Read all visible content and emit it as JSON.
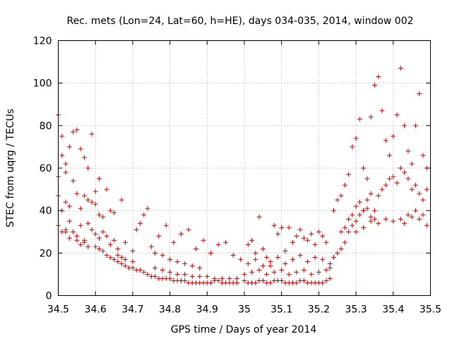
{
  "chart_data": {
    "type": "scatter",
    "title": "Rec. mets (Lon=24, Lat=60, h=HE), days 034-035, 2014, window 002",
    "xlabel": "GPS time / Days of year 2014",
    "ylabel": "STEC from uqrg / TECUs",
    "xlim": [
      34.5,
      35.5
    ],
    "ylim": [
      0,
      120
    ],
    "xticks": [
      "34.5",
      "34.6",
      "34.7",
      "34.8",
      "34.9",
      "35",
      "35.1",
      "35.2",
      "35.3",
      "35.4",
      "35.5"
    ],
    "yticks": [
      "0",
      "20",
      "40",
      "60",
      "80",
      "100",
      "120"
    ],
    "grid": true,
    "marker": "+",
    "color": "#cc0000",
    "series": [
      {
        "points": [
          [
            34.5,
            85
          ],
          [
            34.5,
            56
          ],
          [
            34.51,
            75
          ],
          [
            34.51,
            66
          ],
          [
            34.52,
            62
          ],
          [
            34.52,
            58
          ],
          [
            34.53,
            70
          ],
          [
            34.54,
            77
          ],
          [
            34.55,
            78
          ],
          [
            34.56,
            69
          ],
          [
            34.57,
            65
          ],
          [
            34.58,
            60
          ],
          [
            34.59,
            76
          ],
          [
            34.6,
            49
          ],
          [
            34.61,
            55
          ],
          [
            34.63,
            50
          ],
          [
            34.5,
            47
          ],
          [
            34.51,
            40
          ],
          [
            34.52,
            44
          ],
          [
            34.53,
            42
          ],
          [
            34.54,
            54
          ],
          [
            34.55,
            48
          ],
          [
            34.56,
            41
          ],
          [
            34.57,
            47
          ],
          [
            34.58,
            45
          ],
          [
            34.59,
            44
          ],
          [
            34.6,
            43
          ],
          [
            34.61,
            38
          ],
          [
            34.62,
            37
          ],
          [
            34.64,
            40
          ],
          [
            34.65,
            39
          ],
          [
            34.67,
            45
          ],
          [
            34.5,
            33
          ],
          [
            34.51,
            30
          ],
          [
            34.52,
            31
          ],
          [
            34.53,
            35
          ],
          [
            34.54,
            30
          ],
          [
            34.55,
            28
          ],
          [
            34.56,
            33
          ],
          [
            34.57,
            26
          ],
          [
            34.58,
            34
          ],
          [
            34.59,
            31
          ],
          [
            34.6,
            29
          ],
          [
            34.61,
            27
          ],
          [
            34.62,
            30
          ],
          [
            34.63,
            28
          ],
          [
            34.64,
            24
          ],
          [
            34.65,
            26
          ],
          [
            34.66,
            22
          ],
          [
            34.68,
            25
          ],
          [
            34.7,
            21
          ],
          [
            34.52,
            30
          ],
          [
            34.53,
            27
          ],
          [
            34.55,
            26
          ],
          [
            34.56,
            24
          ],
          [
            34.57,
            25
          ],
          [
            34.58,
            23
          ],
          [
            34.6,
            23
          ],
          [
            34.61,
            22
          ],
          [
            34.62,
            21
          ],
          [
            34.63,
            19
          ],
          [
            34.64,
            18
          ],
          [
            34.65,
            17
          ],
          [
            34.66,
            16
          ],
          [
            34.67,
            15
          ],
          [
            34.68,
            14
          ],
          [
            34.69,
            13
          ],
          [
            34.7,
            13
          ],
          [
            34.71,
            12
          ],
          [
            34.72,
            12
          ],
          [
            34.73,
            11
          ],
          [
            34.66,
            19
          ],
          [
            34.67,
            18
          ],
          [
            34.68,
            17
          ],
          [
            34.7,
            16
          ],
          [
            34.71,
            31
          ],
          [
            34.72,
            34
          ],
          [
            34.73,
            38
          ],
          [
            34.74,
            41
          ],
          [
            34.75,
            23
          ],
          [
            34.76,
            20
          ],
          [
            34.78,
            19
          ],
          [
            34.8,
            17
          ],
          [
            34.82,
            16
          ],
          [
            34.84,
            15
          ],
          [
            34.86,
            14
          ],
          [
            34.88,
            13
          ],
          [
            34.74,
            10
          ],
          [
            34.75,
            9
          ],
          [
            34.76,
            9
          ],
          [
            34.77,
            8
          ],
          [
            34.78,
            8
          ],
          [
            34.79,
            8
          ],
          [
            34.8,
            8
          ],
          [
            34.81,
            7
          ],
          [
            34.82,
            7
          ],
          [
            34.83,
            7
          ],
          [
            34.84,
            7
          ],
          [
            34.85,
            6
          ],
          [
            34.86,
            6
          ],
          [
            34.87,
            6
          ],
          [
            34.88,
            6
          ],
          [
            34.89,
            6
          ],
          [
            34.9,
            6
          ],
          [
            34.91,
            6
          ],
          [
            34.92,
            7
          ],
          [
            34.93,
            7
          ],
          [
            34.94,
            6
          ],
          [
            34.95,
            6
          ],
          [
            34.96,
            6
          ],
          [
            34.97,
            6
          ],
          [
            34.98,
            6
          ],
          [
            34.76,
            13
          ],
          [
            34.78,
            12
          ],
          [
            34.8,
            11
          ],
          [
            34.82,
            10
          ],
          [
            34.84,
            10
          ],
          [
            34.86,
            9
          ],
          [
            34.88,
            9
          ],
          [
            34.9,
            9
          ],
          [
            34.92,
            8
          ],
          [
            34.94,
            8
          ],
          [
            34.96,
            8
          ],
          [
            34.98,
            8
          ],
          [
            34.77,
            28
          ],
          [
            34.79,
            33
          ],
          [
            34.81,
            25
          ],
          [
            34.83,
            29
          ],
          [
            34.85,
            31
          ],
          [
            34.87,
            22
          ],
          [
            34.89,
            26
          ],
          [
            34.91,
            20
          ],
          [
            34.93,
            24
          ],
          [
            34.95,
            25
          ],
          [
            34.97,
            19
          ],
          [
            34.99,
            17
          ],
          [
            35.01,
            24
          ],
          [
            35.02,
            26
          ],
          [
            35.03,
            20
          ],
          [
            35.04,
            37
          ],
          [
            35.05,
            22
          ],
          [
            35.06,
            18
          ],
          [
            35.07,
            14
          ],
          [
            35.08,
            33
          ],
          [
            35.09,
            29
          ],
          [
            35.1,
            32
          ],
          [
            35.11,
            21
          ],
          [
            35.12,
            32
          ],
          [
            35.13,
            25
          ],
          [
            35.14,
            28
          ],
          [
            35.15,
            31
          ],
          [
            35.16,
            27
          ],
          [
            35.17,
            26
          ],
          [
            35.18,
            29
          ],
          [
            35.19,
            24
          ],
          [
            35.2,
            30
          ],
          [
            35.21,
            28
          ],
          [
            35.22,
            25
          ],
          [
            35.0,
            7
          ],
          [
            35.01,
            6
          ],
          [
            35.02,
            6
          ],
          [
            35.03,
            6
          ],
          [
            35.04,
            7
          ],
          [
            35.05,
            7
          ],
          [
            35.06,
            6
          ],
          [
            35.07,
            6
          ],
          [
            35.08,
            7
          ],
          [
            35.09,
            7
          ],
          [
            35.1,
            7
          ],
          [
            35.11,
            6
          ],
          [
            35.12,
            6
          ],
          [
            35.13,
            6
          ],
          [
            35.14,
            6
          ],
          [
            35.15,
            7
          ],
          [
            35.16,
            7
          ],
          [
            35.17,
            6
          ],
          [
            35.18,
            6
          ],
          [
            35.19,
            6
          ],
          [
            35.2,
            6
          ],
          [
            35.21,
            6
          ],
          [
            35.22,
            7
          ],
          [
            35.23,
            8
          ],
          [
            35.0,
            10
          ],
          [
            35.02,
            11
          ],
          [
            35.04,
            12
          ],
          [
            35.06,
            10
          ],
          [
            35.08,
            11
          ],
          [
            35.1,
            12
          ],
          [
            35.12,
            10
          ],
          [
            35.14,
            11
          ],
          [
            35.16,
            12
          ],
          [
            35.18,
            10
          ],
          [
            35.2,
            11
          ],
          [
            35.22,
            12
          ],
          [
            35.01,
            15
          ],
          [
            35.03,
            17
          ],
          [
            35.05,
            14
          ],
          [
            35.07,
            16
          ],
          [
            35.09,
            18
          ],
          [
            35.11,
            15
          ],
          [
            35.13,
            17
          ],
          [
            35.15,
            19
          ],
          [
            35.17,
            16
          ],
          [
            35.19,
            18
          ],
          [
            35.21,
            17
          ],
          [
            35.23,
            15
          ],
          [
            35.23,
            13
          ],
          [
            35.24,
            18
          ],
          [
            35.25,
            20
          ],
          [
            35.26,
            22
          ],
          [
            35.27,
            25
          ],
          [
            35.28,
            30
          ],
          [
            35.29,
            33
          ],
          [
            35.3,
            35
          ],
          [
            35.31,
            38
          ],
          [
            35.32,
            40
          ],
          [
            35.33,
            41
          ],
          [
            35.34,
            37
          ],
          [
            35.35,
            36
          ],
          [
            35.24,
            40
          ],
          [
            35.25,
            45
          ],
          [
            35.26,
            47
          ],
          [
            35.27,
            52
          ],
          [
            35.28,
            57
          ],
          [
            35.29,
            70
          ],
          [
            35.3,
            74
          ],
          [
            35.31,
            83
          ],
          [
            35.32,
            60
          ],
          [
            35.33,
            55
          ],
          [
            35.34,
            84
          ],
          [
            35.35,
            99
          ],
          [
            35.36,
            103
          ],
          [
            35.37,
            87
          ],
          [
            35.38,
            73
          ],
          [
            35.39,
            66
          ],
          [
            35.4,
            75
          ],
          [
            35.41,
            85
          ],
          [
            35.42,
            107
          ],
          [
            35.43,
            80
          ],
          [
            35.44,
            68
          ],
          [
            35.45,
            62
          ],
          [
            35.46,
            80
          ],
          [
            35.47,
            95
          ],
          [
            35.48,
            66
          ],
          [
            35.49,
            60
          ],
          [
            35.26,
            30
          ],
          [
            35.27,
            32
          ],
          [
            35.28,
            36
          ],
          [
            35.29,
            38
          ],
          [
            35.3,
            42
          ],
          [
            35.31,
            44
          ],
          [
            35.32,
            40
          ],
          [
            35.33,
            45
          ],
          [
            35.34,
            48
          ],
          [
            35.35,
            40
          ],
          [
            35.36,
            47
          ],
          [
            35.37,
            50
          ],
          [
            35.38,
            52
          ],
          [
            35.39,
            55
          ],
          [
            35.4,
            56
          ],
          [
            35.41,
            53
          ],
          [
            35.42,
            60
          ],
          [
            35.43,
            58
          ],
          [
            35.44,
            55
          ],
          [
            35.45,
            50
          ],
          [
            35.46,
            52
          ],
          [
            35.47,
            48
          ],
          [
            35.48,
            45
          ],
          [
            35.49,
            50
          ],
          [
            35.3,
            30
          ],
          [
            35.32,
            32
          ],
          [
            35.34,
            35
          ],
          [
            35.36,
            34
          ],
          [
            35.38,
            36
          ],
          [
            35.4,
            35
          ],
          [
            35.42,
            36
          ],
          [
            35.44,
            38
          ],
          [
            35.46,
            40
          ],
          [
            35.48,
            38
          ],
          [
            35.49,
            33
          ],
          [
            35.47,
            36
          ],
          [
            35.45,
            37
          ],
          [
            35.43,
            34
          ]
        ]
      }
    ]
  }
}
